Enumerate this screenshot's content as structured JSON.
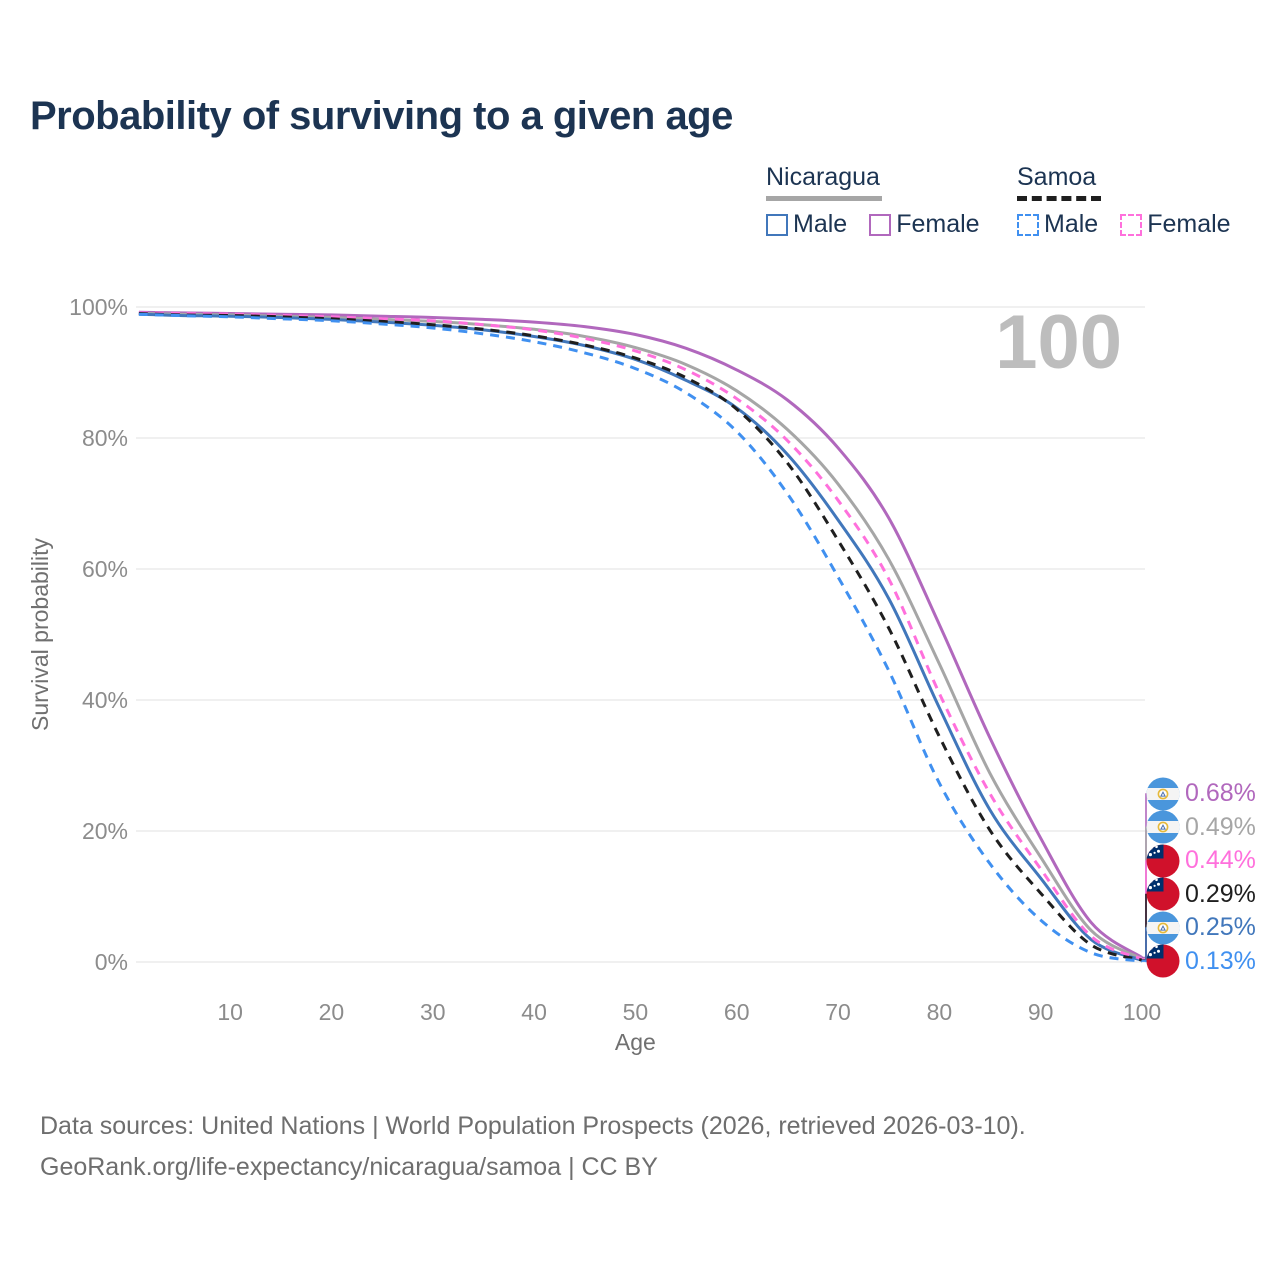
{
  "title": "Probability of surviving to a given age",
  "watermark_age": "100",
  "legend": {
    "groups": [
      {
        "country": "Nicaragua",
        "line_style": "solid",
        "line_color": "#a6a6a6",
        "items": [
          {
            "label": "Male",
            "color": "#4177bb",
            "dash": false
          },
          {
            "label": "Female",
            "color": "#b168bd",
            "dash": false
          }
        ]
      },
      {
        "country": "Samoa",
        "line_style": "dashed",
        "line_color": "#1f1f1f",
        "items": [
          {
            "label": "Male",
            "color": "#4090f0",
            "dash": true
          },
          {
            "label": "Female",
            "color": "#ff70dc",
            "dash": true
          }
        ]
      }
    ]
  },
  "chart_data": {
    "type": "line",
    "title": "Probability of surviving to a given age",
    "xlabel": "Age",
    "ylabel": "Survival probability",
    "xlim": [
      0,
      100
    ],
    "ylim": [
      0,
      100
    ],
    "x_ticks": [
      10,
      20,
      30,
      40,
      50,
      60,
      70,
      80,
      90,
      100
    ],
    "y_ticks": [
      0,
      20,
      40,
      60,
      80,
      100
    ],
    "y_tick_suffix": "%",
    "grid": "horizontal",
    "legend_position": "top-right",
    "x": [
      1,
      5,
      10,
      15,
      20,
      25,
      30,
      35,
      40,
      45,
      50,
      55,
      60,
      65,
      70,
      75,
      80,
      85,
      90,
      95,
      100
    ],
    "series": [
      {
        "name": "Nicaragua Female",
        "country": "Nicaragua",
        "sex": "Female",
        "flag": "nicaragua",
        "color": "#b168bd",
        "dash": false,
        "values": [
          99.2,
          99.1,
          99.0,
          98.9,
          98.8,
          98.6,
          98.4,
          98.1,
          97.7,
          97.0,
          95.8,
          93.7,
          90.4,
          85.8,
          78.5,
          67.8,
          51.5,
          34.2,
          18.9,
          6.0,
          0.68
        ],
        "end_label": "0.68%"
      },
      {
        "name": "Nicaragua",
        "country": "Nicaragua",
        "sex": "Both",
        "flag": "nicaragua",
        "color": "#a6a6a6",
        "dash": false,
        "values": [
          99.0,
          98.9,
          98.8,
          98.6,
          98.4,
          98.1,
          97.8,
          97.3,
          96.6,
          95.5,
          93.8,
          91.2,
          87.2,
          81.3,
          73.0,
          61.5,
          45.5,
          28.8,
          16.0,
          4.8,
          0.49
        ],
        "end_label": "0.49%"
      },
      {
        "name": "Samoa Female",
        "country": "Samoa",
        "sex": "Female",
        "flag": "samoa",
        "color": "#ff70dc",
        "dash": true,
        "values": [
          99.1,
          99.0,
          98.9,
          98.7,
          98.5,
          98.2,
          97.9,
          97.3,
          96.5,
          95.2,
          93.3,
          90.4,
          86.0,
          79.6,
          70.5,
          58.5,
          41.0,
          25.7,
          14.2,
          3.9,
          0.44
        ],
        "end_label": "0.44%"
      },
      {
        "name": "Samoa",
        "country": "Samoa",
        "sex": "Both",
        "flag": "samoa",
        "color": "#1f1f1f",
        "dash": true,
        "values": [
          99.0,
          98.8,
          98.7,
          98.5,
          98.2,
          97.8,
          97.3,
          96.6,
          95.6,
          94.2,
          92.2,
          89.2,
          84.4,
          76.2,
          64.4,
          51.0,
          34.4,
          20.1,
          10.5,
          2.6,
          0.29
        ],
        "end_label": "0.29%"
      },
      {
        "name": "Nicaragua Male",
        "country": "Nicaragua",
        "sex": "Male",
        "flag": "nicaragua",
        "color": "#4177bb",
        "dash": false,
        "values": [
          98.9,
          98.7,
          98.6,
          98.4,
          98.1,
          97.7,
          97.2,
          96.5,
          95.5,
          94.1,
          92.0,
          88.8,
          84.6,
          77.5,
          67.5,
          55.5,
          38.8,
          23.2,
          12.8,
          3.4,
          0.25
        ],
        "end_label": "0.25%"
      },
      {
        "name": "Samoa Male",
        "country": "Samoa",
        "sex": "Male",
        "flag": "samoa",
        "color": "#4090f0",
        "dash": true,
        "values": [
          98.9,
          98.7,
          98.5,
          98.2,
          97.9,
          97.4,
          96.8,
          95.9,
          94.7,
          93.0,
          90.6,
          86.9,
          81.0,
          71.5,
          58.8,
          44.5,
          27.3,
          15.0,
          6.4,
          1.4,
          0.13
        ],
        "end_label": "0.13%"
      }
    ]
  },
  "footer": {
    "line1": "Data sources: United Nations | World Population Prospects (2026, retrieved 2026-03-10).",
    "line2": "GeoRank.org/life-expectancy/nicaragua/samoa | CC BY"
  }
}
